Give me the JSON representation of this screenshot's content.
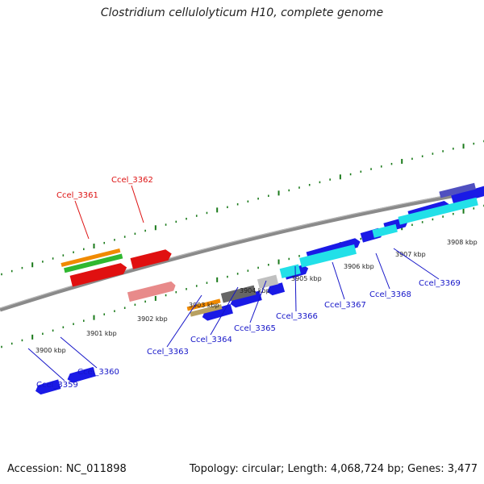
{
  "title": "Clostridium cellulolyticum H10, complete genome",
  "footer": {
    "accession": "Accession: NC_011898",
    "topology": "Topology: circular; Length: 4,068,724 bp; Genes: 3,477"
  },
  "colors": {
    "backbone": "#8a8a8a",
    "tick": "#1a7a1a",
    "label_blue": "#1515c8",
    "label_red": "#dd1111"
  },
  "scale_labels": [
    "3900 kbp",
    "3901 kbp",
    "3902 kbp",
    "3903 kbp",
    "3904 kbp",
    "3905 kbp",
    "3906 kbp",
    "3907 kbp",
    "3908 kbp"
  ],
  "gene_labels": [
    {
      "name": "Ccel_3359",
      "color": "blue"
    },
    {
      "name": "Ccel_3360",
      "color": "blue"
    },
    {
      "name": "Ccel_3361",
      "color": "red"
    },
    {
      "name": "Ccel_3362",
      "color": "red"
    },
    {
      "name": "Ccel_3363",
      "color": "blue"
    },
    {
      "name": "Ccel_3364",
      "color": "blue"
    },
    {
      "name": "Ccel_3365",
      "color": "blue"
    },
    {
      "name": "Ccel_3366",
      "color": "blue"
    },
    {
      "name": "Ccel_3367",
      "color": "blue"
    },
    {
      "name": "Ccel_3368",
      "color": "blue"
    },
    {
      "name": "Ccel_3369",
      "color": "blue"
    }
  ]
}
